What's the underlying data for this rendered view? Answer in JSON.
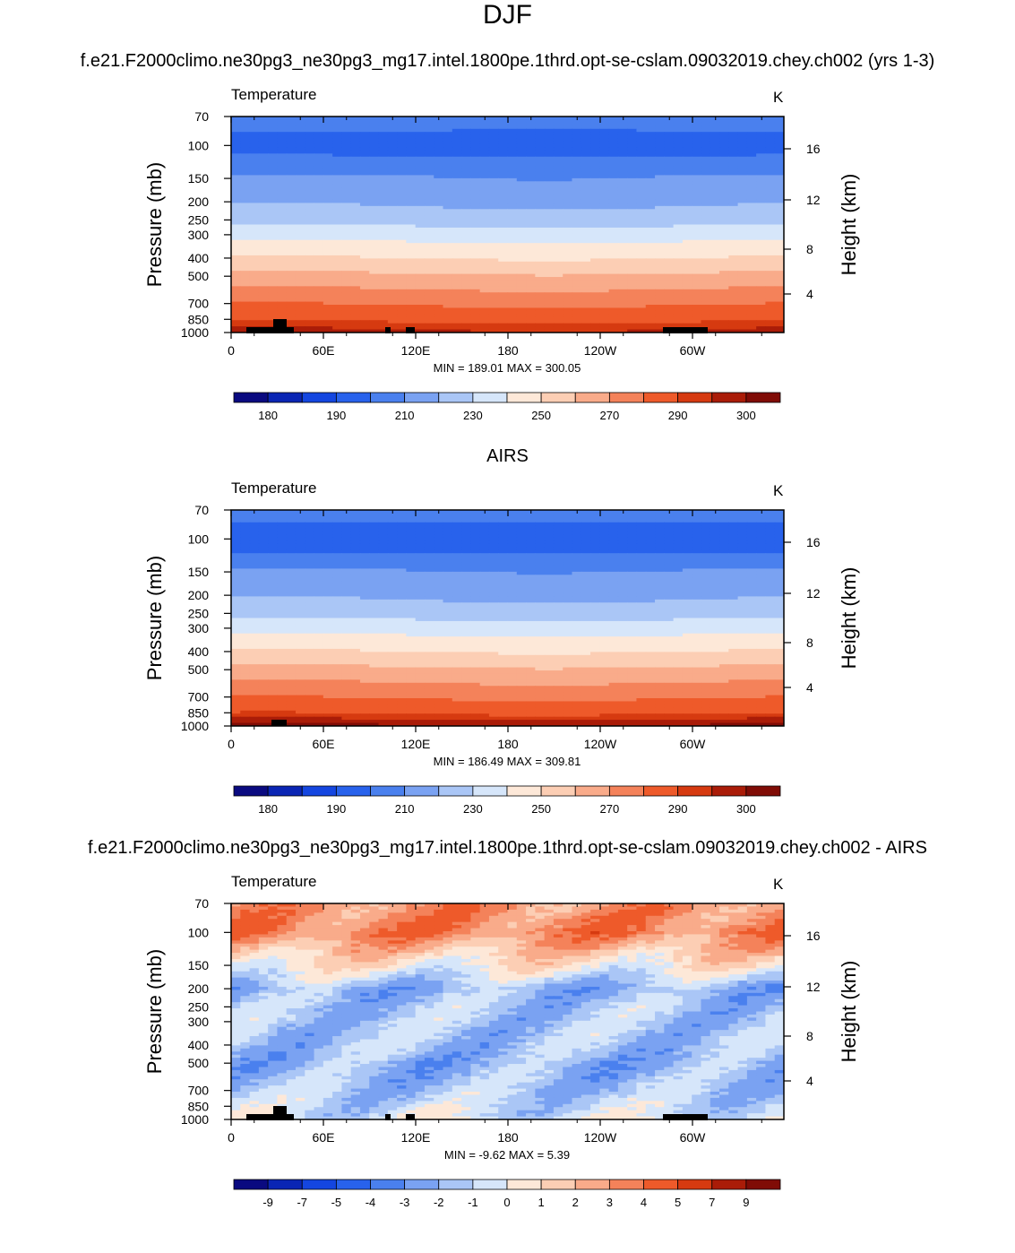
{
  "page": {
    "main_title": "DJF",
    "case_name": "f.e21.F2000climo.ne30pg3_ne30pg3_mg17.intel.1800pe.1thrd.opt-se-cslam.09032019.chey.ch002 (yrs 1-3)",
    "obs_name": "AIRS",
    "diff_title": "f.e21.F2000climo.ne30pg3_ne30pg3_mg17.intel.1800pe.1thrd.opt-se-cslam.09032019.chey.ch002 - AIRS"
  },
  "chart_data": [
    {
      "type": "heatmap",
      "panel": "model",
      "variable_label": "Temperature",
      "units_label": "K",
      "ylabel": "Pressure (mb)",
      "ylabel_right": "Height (km)",
      "xticks": [
        "0",
        "60E",
        "120E",
        "180",
        "120W",
        "60W"
      ],
      "yticks": [
        70,
        100,
        150,
        200,
        250,
        300,
        400,
        500,
        700,
        850,
        1000
      ],
      "yticks_right": [
        16,
        12,
        8,
        4
      ],
      "ylim": [
        1000,
        70
      ],
      "stats": "MIN = 189.01  MAX = 300.05",
      "colorbar_labels": [
        "180",
        "190",
        "210",
        "230",
        "250",
        "270",
        "290",
        "300"
      ],
      "colorbar_colors": [
        "#0a0a80",
        "#0a25b4",
        "#1446e0",
        "#2862ec",
        "#4a80ee",
        "#7aa2f2",
        "#aac6f6",
        "#d6e6fa",
        "#fde8d8",
        "#fcceb4",
        "#f9ab8a",
        "#f4825a",
        "#ee5a2a",
        "#d63a10",
        "#aa1c08",
        "#800c06"
      ],
      "field": {
        "p_levels": [
          70,
          100,
          150,
          200,
          250,
          300,
          400,
          500,
          700,
          850,
          1000
        ],
        "t_values": [
          205,
          195,
          211,
          218,
          226,
          236,
          250,
          262,
          279,
          288,
          297
        ]
      }
    },
    {
      "type": "heatmap",
      "panel": "obs",
      "variable_label": "Temperature",
      "units_label": "K",
      "ylabel": "Pressure (mb)",
      "ylabel_right": "Height (km)",
      "xticks": [
        "0",
        "60E",
        "120E",
        "180",
        "120W",
        "60W"
      ],
      "yticks": [
        70,
        100,
        150,
        200,
        250,
        300,
        400,
        500,
        700,
        850,
        1000
      ],
      "yticks_right": [
        16,
        12,
        8,
        4
      ],
      "ylim": [
        1000,
        70
      ],
      "stats": "MIN = 186.49  MAX = 309.81",
      "colorbar_labels": [
        "180",
        "190",
        "210",
        "230",
        "250",
        "270",
        "290",
        "300"
      ],
      "colorbar_colors": [
        "#0a0a80",
        "#0a25b4",
        "#1446e0",
        "#2862ec",
        "#4a80ee",
        "#7aa2f2",
        "#aac6f6",
        "#d6e6fa",
        "#fde8d8",
        "#fcceb4",
        "#f9ab8a",
        "#f4825a",
        "#ee5a2a",
        "#d63a10",
        "#aa1c08",
        "#800c06"
      ],
      "field": {
        "p_levels": [
          70,
          100,
          150,
          200,
          250,
          300,
          400,
          500,
          700,
          850,
          1000
        ],
        "t_values": [
          206,
          192,
          211,
          218,
          226,
          236,
          250,
          262,
          279,
          289,
          301
        ]
      }
    },
    {
      "type": "heatmap",
      "panel": "difference",
      "variable_label": "Temperature",
      "units_label": "K",
      "ylabel": "Pressure (mb)",
      "ylabel_right": "Height (km)",
      "xticks": [
        "0",
        "60E",
        "120E",
        "180",
        "120W",
        "60W"
      ],
      "yticks": [
        70,
        100,
        150,
        200,
        250,
        300,
        400,
        500,
        700,
        850,
        1000
      ],
      "yticks_right": [
        16,
        12,
        8,
        4
      ],
      "ylim": [
        1000,
        70
      ],
      "stats": "MIN =  -9.62  MAX =   5.39",
      "colorbar_labels": [
        "-9",
        "-7",
        "-5",
        "-4",
        "-3",
        "-2",
        "-1",
        "0",
        "1",
        "2",
        "3",
        "4",
        "5",
        "7",
        "9"
      ],
      "colorbar_colors": [
        "#0a0a80",
        "#0a25b4",
        "#1446e0",
        "#2862ec",
        "#4a80ee",
        "#7aa2f2",
        "#aac6f6",
        "#d6e6fa",
        "#fde8d8",
        "#fcceb4",
        "#f9ab8a",
        "#f4825a",
        "#ee5a2a",
        "#d63a10",
        "#aa1c08",
        "#800c06"
      ],
      "field": {
        "p_levels": [
          70,
          100,
          150,
          200,
          250,
          300,
          400,
          500,
          700,
          850,
          1000
        ],
        "t_values": [
          3,
          3.5,
          0.5,
          -2,
          -1.5,
          -1.5,
          -1.5,
          -2,
          -1.5,
          -1,
          -0.5
        ]
      }
    }
  ]
}
